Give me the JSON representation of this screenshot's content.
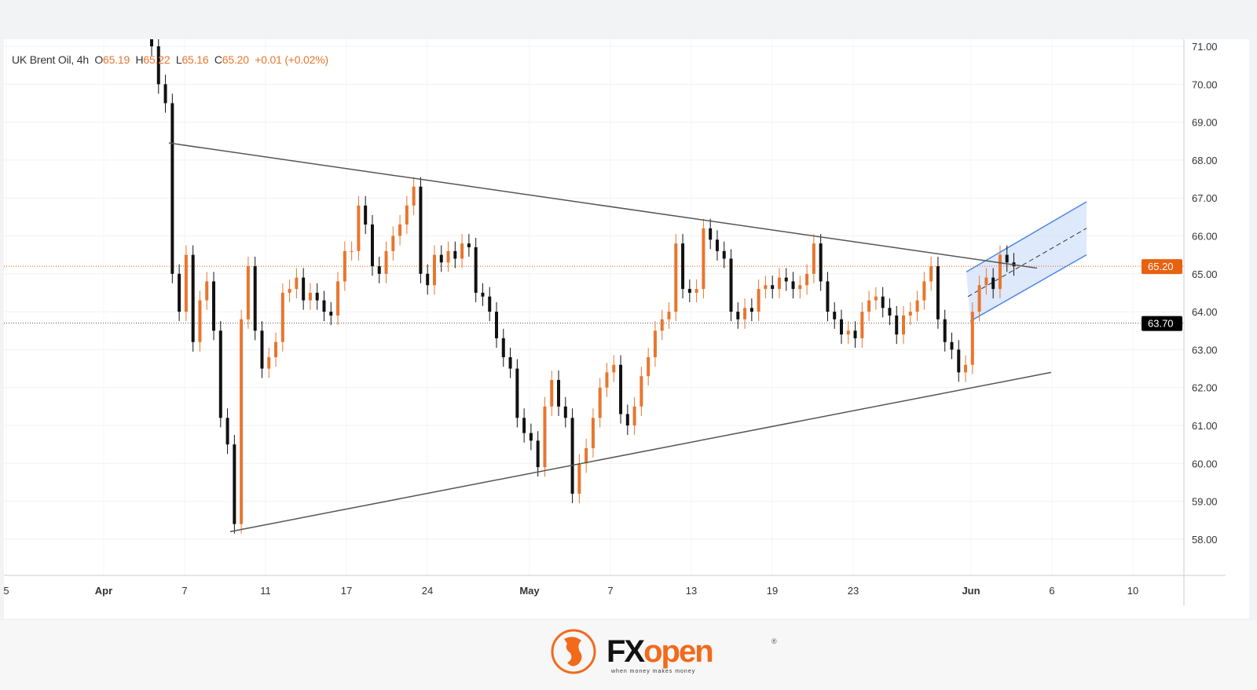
{
  "header": {
    "symbol": "UK Brent Oil, 4h",
    "o_label": "O",
    "o": "65.19",
    "h_label": "H",
    "h": "65.22",
    "l_label": "L",
    "l": "65.16",
    "c_label": "C",
    "c": "65.20",
    "change": "+0.01 (+0.02%)"
  },
  "chart_data": {
    "type": "candlestick",
    "title": "UK Brent Oil, 4h",
    "ylim": [
      57.3,
      71.1
    ],
    "y_ticks": [
      "58.00",
      "59.00",
      "60.00",
      "61.00",
      "62.00",
      "63.00",
      "64.00",
      "65.00",
      "66.00",
      "67.00",
      "68.00",
      "69.00",
      "70.00",
      "71.00"
    ],
    "x_ticks": [
      "5",
      "Apr",
      "7",
      "11",
      "17",
      "24",
      "May",
      "7",
      "13",
      "19",
      "23",
      "Jun",
      "6",
      "10"
    ],
    "closes": [
      71.0,
      70.0,
      69.5,
      65.0,
      64.0,
      65.5,
      63.2,
      64.3,
      64.8,
      63.5,
      61.2,
      60.5,
      58.4,
      63.8,
      65.2,
      63.5,
      62.5,
      62.8,
      63.2,
      64.5,
      64.6,
      64.9,
      64.3,
      64.5,
      64.3,
      64.0,
      63.9,
      64.8,
      65.6,
      65.6,
      66.8,
      66.3,
      65.2,
      65.0,
      65.6,
      66.0,
      66.3,
      66.8,
      67.3,
      65.0,
      64.7,
      65.5,
      65.3,
      65.6,
      65.4,
      65.8,
      65.7,
      64.5,
      64.4,
      64.0,
      63.3,
      62.8,
      62.5,
      61.2,
      60.8,
      60.6,
      59.9,
      61.5,
      62.2,
      61.5,
      61.2,
      59.2,
      60.0,
      60.4,
      61.2,
      62.0,
      62.4,
      62.6,
      61.3,
      61.0,
      61.5,
      62.3,
      62.8,
      63.5,
      63.8,
      64.0,
      65.8,
      64.6,
      64.5,
      64.6,
      66.2,
      65.9,
      65.6,
      65.4,
      64.0,
      63.8,
      64.1,
      64.0,
      64.6,
      64.7,
      64.6,
      64.9,
      64.8,
      64.6,
      64.7,
      65.0,
      65.8,
      64.8,
      64.0,
      63.8,
      63.4,
      63.5,
      63.3,
      64.0,
      64.3,
      64.4,
      64.1,
      63.9,
      63.4,
      63.9,
      64.0,
      64.3,
      64.8,
      65.2,
      63.8,
      63.2,
      63.0,
      62.4,
      62.6,
      64.0,
      64.7,
      64.9,
      64.6,
      65.5,
      65.3,
      65.2
    ],
    "last_price": "65.20",
    "marked_level": "63.70",
    "trendlines": {
      "upper": [
        68.45,
        65.15
      ],
      "lower": [
        58.2,
        62.4
      ]
    },
    "channel": {
      "lower": [
        63.75,
        65.5
      ],
      "upper": [
        65.05,
        66.9
      ]
    },
    "colors": {
      "up": "#e8762e",
      "down": "#111111",
      "channel": "#4a86e8",
      "channel_fill": "#d6e4fb",
      "last_price": "#e8620f",
      "level": "#000000"
    }
  },
  "footer": {
    "brand_fx": "FX",
    "brand_open": "open",
    "tagline": "when money makes money",
    "reg": "®"
  }
}
